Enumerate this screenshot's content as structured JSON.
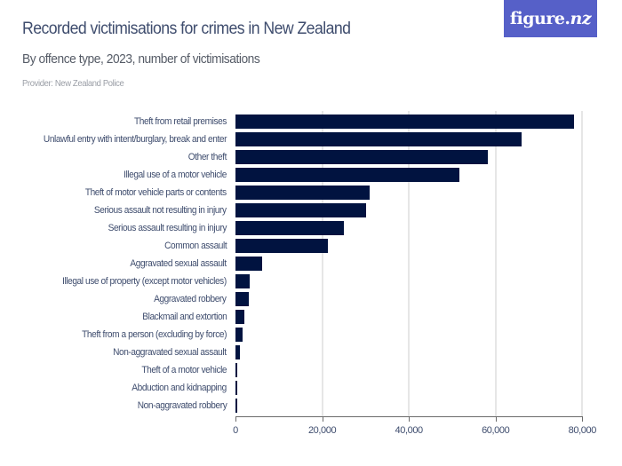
{
  "header": {
    "title": "Recorded victimisations for crimes in New Zealand",
    "subtitle": "By offence type, 2023, number of victimisations",
    "provider": "Provider: New Zealand Police",
    "logo_text_main": "figure.",
    "logo_text_nz": "nz",
    "logo_color": "#5660c8"
  },
  "colors": {
    "bar": "#011340",
    "text": "#3f4d6e",
    "gridline": "#e6e6e6",
    "axis": "#6b6b6b"
  },
  "chart_data": {
    "type": "bar",
    "orientation": "horizontal",
    "title": "Recorded victimisations for crimes in New Zealand",
    "subtitle": "By offence type, 2023, number of victimisations",
    "xlabel": "",
    "ylabel": "",
    "xlim": [
      0,
      80000
    ],
    "x_ticks": [
      "0",
      "20,000",
      "40,000",
      "60,000",
      "80,000"
    ],
    "grid": true,
    "legend": null,
    "categories": [
      "Theft from retail premises",
      "Unlawful entry with intent/burglary, break and enter",
      "Other theft",
      "Illegal use of a motor vehicle",
      "Theft of motor vehicle parts or contents",
      "Serious assault not resulting in injury",
      "Serious assault resulting in injury",
      "Common assault",
      "Aggravated sexual assault",
      "Illegal use of property (except motor vehicles)",
      "Aggravated robbery",
      "Blackmail and extortion",
      "Theft from a person (excluding by force)",
      "Non-aggravated sexual assault",
      "Theft of a motor vehicle",
      "Abduction and kidnapping",
      "Non-aggravated robbery"
    ],
    "values": [
      78100,
      66100,
      58200,
      51600,
      30850,
      30100,
      24950,
      21400,
      6100,
      3200,
      3150,
      2100,
      1550,
      1100,
      480,
      410,
      340
    ]
  }
}
